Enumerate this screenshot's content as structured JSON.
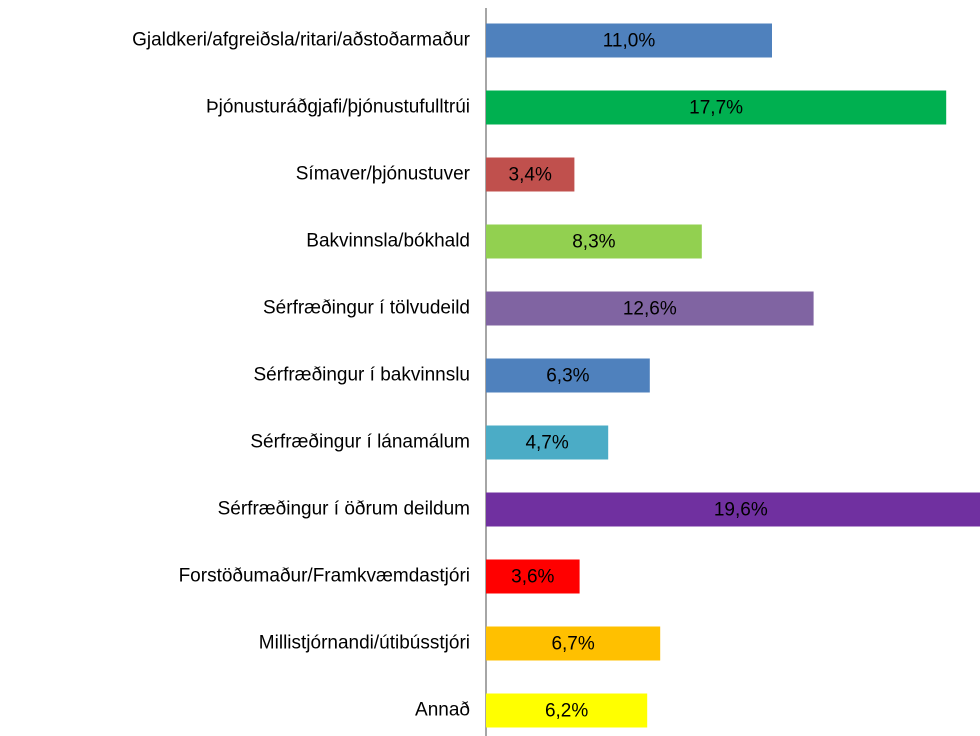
{
  "chart_data": {
    "type": "barh",
    "categories": [
      "Gjaldkeri/afgreiðsla/ritari/aðstoðarmaður",
      "Þjónusturáðgjafi/þjónustufulltrúi",
      "Símaver/þjónustuver",
      "Bakvinnsla/bókhald",
      "Sérfræðingur í tölvudeild",
      "Sérfræðingur í bakvinnslu",
      "Sérfræðingur í lánamálum",
      "Sérfræðingur í öðrum deildum",
      "Forstöðumaður/Framkvæmdastjóri",
      "Millistjórnandi/útibússtjóri",
      "Annað"
    ],
    "values": [
      11.0,
      17.7,
      3.4,
      8.3,
      12.6,
      6.3,
      4.7,
      19.6,
      3.6,
      6.7,
      6.2
    ],
    "value_labels": [
      "11,0%",
      "17,7%",
      "3,4%",
      "8,3%",
      "12,6%",
      "6,3%",
      "4,7%",
      "19,6%",
      "3,6%",
      "6,7%",
      "6,2%"
    ],
    "colors": [
      "#4f81bd",
      "#00b050",
      "#c0504d",
      "#92d050",
      "#8064a2",
      "#4f81bd",
      "#4bacc6",
      "#7030a0",
      "#ff0000",
      "#ffc000",
      "#ffff00"
    ],
    "xlim": [
      0,
      19
    ]
  }
}
